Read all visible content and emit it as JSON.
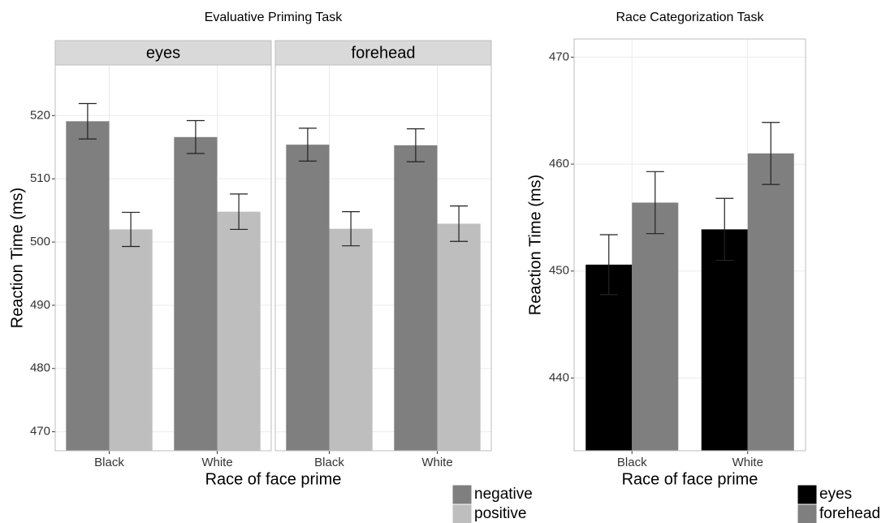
{
  "chart_data": [
    {
      "type": "bar",
      "title": "Evaluative Priming Task",
      "x_label": "Race of face prime",
      "y_label": "Reaction Time (ms)",
      "facets": [
        "eyes",
        "forehead"
      ],
      "categories": [
        "Black",
        "White"
      ],
      "series": [
        {
          "name": "negative",
          "color": "#7f7f7f",
          "values": [
            [
              519.1,
              516.6
            ],
            [
              515.4,
              515.3
            ]
          ],
          "errors": [
            [
              2.8,
              2.6
            ],
            [
              2.6,
              2.6
            ]
          ]
        },
        {
          "name": "positive",
          "color": "#bebebe",
          "values": [
            [
              502.0,
              504.8
            ],
            [
              502.1,
              502.9
            ]
          ],
          "errors": [
            [
              2.7,
              2.8
            ],
            [
              2.7,
              2.8
            ]
          ]
        }
      ],
      "ylim": [
        467,
        528
      ],
      "yticks": [
        470,
        480,
        490,
        500,
        510,
        520
      ],
      "grid": true,
      "legend": "bottom-right"
    },
    {
      "type": "bar",
      "title": "Race Categorization Task",
      "x_label": "Race of face prime",
      "y_label": "Reaction Time (ms)",
      "categories": [
        "Black",
        "White"
      ],
      "series": [
        {
          "name": "eyes",
          "color": "#000000",
          "values": [
            450.6,
            453.9
          ],
          "errors": [
            2.8,
            2.9
          ]
        },
        {
          "name": "forehead",
          "color": "#7f7f7f",
          "values": [
            456.4,
            461.0
          ],
          "errors": [
            2.9,
            2.9
          ]
        }
      ],
      "ylim": [
        433.2,
        471.7
      ],
      "yticks": [
        440,
        450,
        460,
        470
      ],
      "grid": true,
      "legend": "bottom-right"
    }
  ]
}
